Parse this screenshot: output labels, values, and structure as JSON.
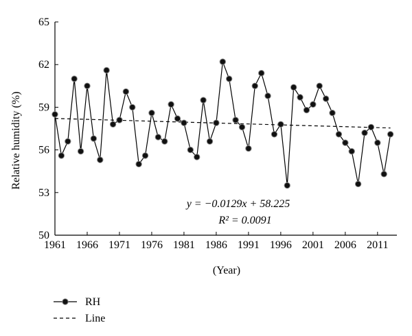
{
  "chart_data": {
    "type": "line",
    "xlabel": "(Year)",
    "ylabel": "Relative humidity (%)",
    "xlim": [
      1961,
      2014
    ],
    "ylim": [
      50,
      65
    ],
    "x_ticks": [
      1961,
      1966,
      1971,
      1976,
      1981,
      1986,
      1991,
      1996,
      2001,
      2006,
      2011
    ],
    "y_ticks": [
      50,
      53,
      56,
      59,
      62,
      65
    ],
    "grid": false,
    "legend_position": "bottom-left",
    "series": [
      {
        "name": "RH",
        "style": "solid line with black circle markers",
        "x": [
          1961,
          1962,
          1963,
          1964,
          1965,
          1966,
          1967,
          1968,
          1969,
          1970,
          1971,
          1972,
          1973,
          1974,
          1975,
          1976,
          1977,
          1978,
          1979,
          1980,
          1981,
          1982,
          1983,
          1984,
          1985,
          1986,
          1987,
          1988,
          1989,
          1990,
          1991,
          1992,
          1993,
          1994,
          1995,
          1996,
          1997,
          1998,
          1999,
          2000,
          2001,
          2002,
          2003,
          2004,
          2005,
          2006,
          2007,
          2008,
          2009,
          2010,
          2011,
          2012,
          2013
        ],
        "y": [
          58.5,
          55.6,
          56.6,
          61.0,
          55.9,
          60.5,
          56.8,
          55.3,
          61.6,
          57.8,
          58.1,
          60.1,
          59.0,
          55.0,
          55.6,
          58.6,
          56.9,
          56.6,
          59.2,
          58.2,
          57.9,
          56.0,
          55.5,
          59.5,
          56.6,
          57.9,
          62.2,
          61.0,
          58.1,
          57.6,
          56.1,
          60.5,
          61.4,
          59.8,
          57.1,
          57.8,
          53.5,
          60.4,
          59.7,
          58.8,
          59.2,
          60.5,
          59.6,
          58.6,
          57.1,
          56.5,
          55.9,
          53.6,
          57.2,
          57.6,
          56.5,
          54.3,
          57.1
        ]
      },
      {
        "name": "Line",
        "style": "dashed linear trend",
        "slope": -0.0129,
        "intercept": 58.225
      }
    ],
    "annotations": {
      "equation": "y = −0.0129x + 58.225",
      "r2": "R² = 0.0091"
    },
    "legend": [
      {
        "label": "RH"
      },
      {
        "label": "Line"
      }
    ]
  }
}
